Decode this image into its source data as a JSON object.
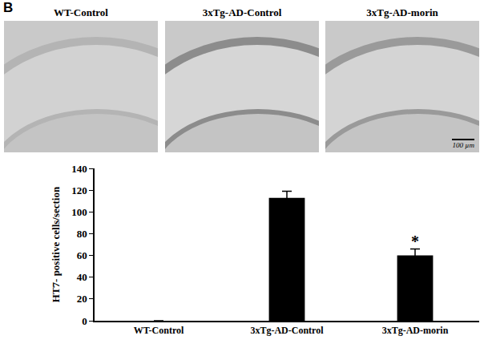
{
  "panel_label": "B",
  "micrographs": [
    {
      "title": "WT-Control"
    },
    {
      "title": "3xTg-AD-Control"
    },
    {
      "title": "3xTg-AD-morin"
    }
  ],
  "scale_bar": "100 µm",
  "chart_data": {
    "type": "bar",
    "categories": [
      "WT-Control",
      "3xTg-AD-Control",
      "3xTg-AD-morin"
    ],
    "values": [
      0,
      113,
      60
    ],
    "errors": [
      0,
      6,
      6
    ],
    "color": "#000000",
    "y_label": "HT7- positive cells/section",
    "ylim": [
      0,
      140
    ],
    "yticks": [
      0,
      20,
      40,
      60,
      80,
      100,
      120,
      140
    ],
    "grid": false,
    "annotations": [
      {
        "category": "3xTg-AD-morin",
        "text": "*"
      }
    ]
  }
}
